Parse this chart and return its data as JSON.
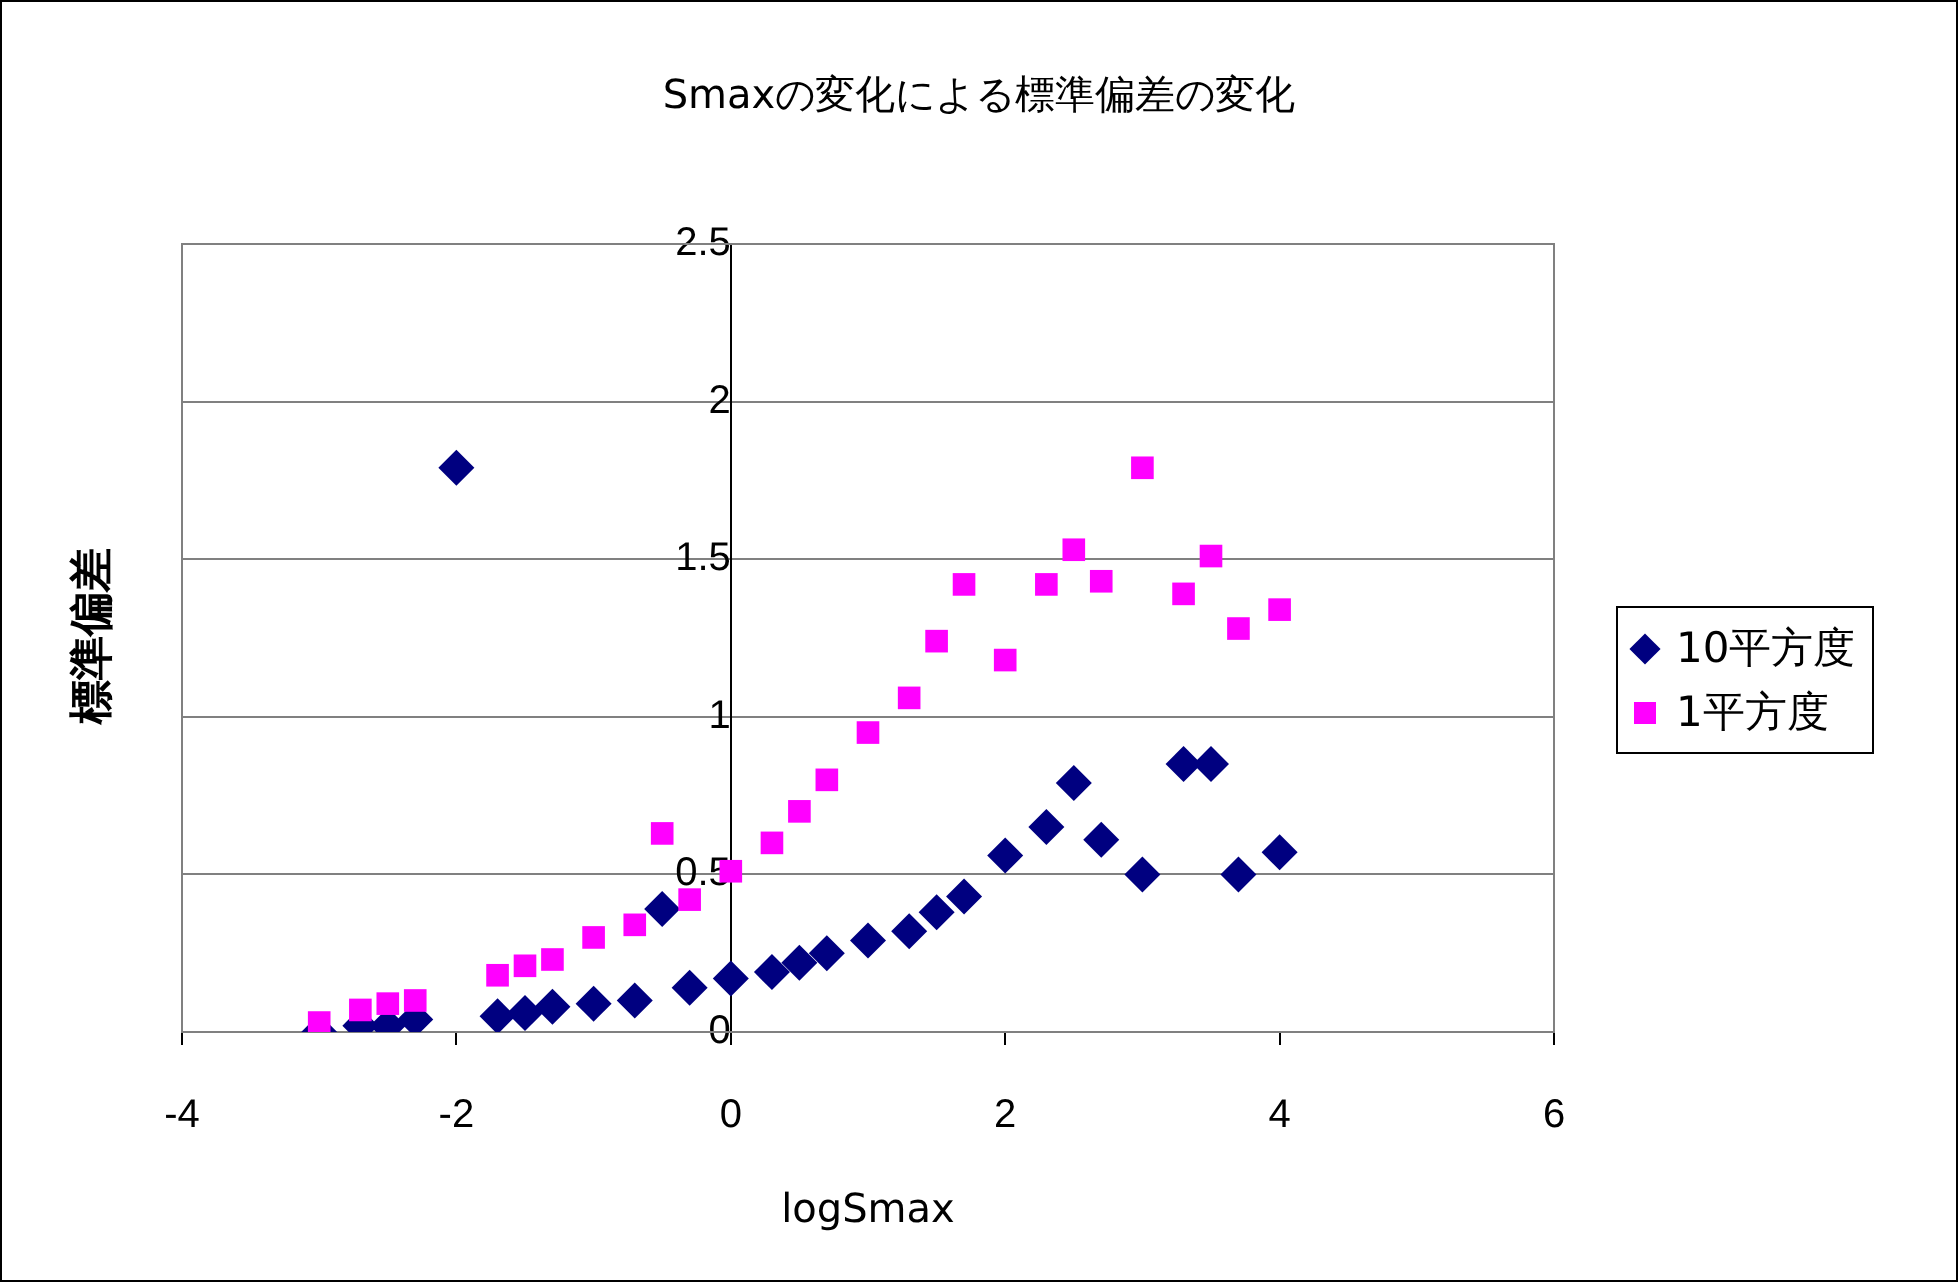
{
  "chart_data": {
    "type": "scatter",
    "title": "Smaxの変化による標準偏差の変化",
    "xlabel": "logSmax",
    "ylabel": "標準偏差",
    "xlim": [
      -4,
      6
    ],
    "xticks": [
      -4,
      -2,
      0,
      2,
      4,
      6
    ],
    "ylim": [
      0,
      2.5
    ],
    "yticks": [
      0,
      0.5,
      1,
      1.5,
      2,
      2.5
    ],
    "grid": "y",
    "legend": "right",
    "series": [
      {
        "name": "10平方度",
        "color": "#000080",
        "marker": "diamond",
        "x": [
          -3,
          -2.7,
          -2.5,
          -2.3,
          -2,
          -1.7,
          -1.5,
          -1.3,
          -1,
          -0.7,
          -0.5,
          -0.3,
          0,
          0.3,
          0.5,
          0.7,
          1,
          1.3,
          1.5,
          1.7,
          2,
          2.3,
          2.5,
          2.7,
          3,
          3.3,
          3.5,
          3.7,
          4
        ],
        "values": [
          0.0,
          0.02,
          0.02,
          0.04,
          1.79,
          0.05,
          0.06,
          0.08,
          0.09,
          0.1,
          0.39,
          0.14,
          0.17,
          0.19,
          0.22,
          0.25,
          0.29,
          0.32,
          0.38,
          0.43,
          0.56,
          0.65,
          0.79,
          0.61,
          0.5,
          0.85,
          0.85,
          0.5,
          0.57
        ]
      },
      {
        "name": "1平方度",
        "color": "#ff00ff",
        "marker": "square",
        "x": [
          -3,
          -2.7,
          -2.5,
          -2.3,
          -1.7,
          -1.5,
          -1.3,
          -1,
          -0.7,
          -0.5,
          -0.3,
          0,
          0.3,
          0.5,
          0.7,
          1,
          1.3,
          1.5,
          1.7,
          2,
          2.3,
          2.5,
          2.7,
          3,
          3.3,
          3.5,
          3.7,
          4
        ],
        "values": [
          0.03,
          0.07,
          0.09,
          0.1,
          0.18,
          0.21,
          0.23,
          0.3,
          0.34,
          0.63,
          0.42,
          0.51,
          0.6,
          0.7,
          0.8,
          0.95,
          1.06,
          1.24,
          1.42,
          1.18,
          1.42,
          1.53,
          1.43,
          1.79,
          1.39,
          1.51,
          1.28,
          1.34
        ]
      }
    ]
  }
}
